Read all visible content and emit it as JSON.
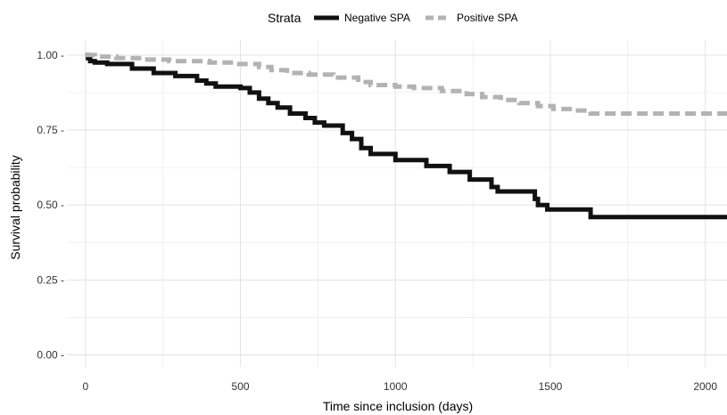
{
  "chart_data": {
    "type": "line",
    "step": true,
    "xlabel": "Time since inclusion (days)",
    "ylabel": "Survival probability",
    "xlim": [
      -60,
      2070
    ],
    "ylim": [
      -0.04,
      1.05
    ],
    "x_ticks": [
      0,
      500,
      1000,
      1500,
      2000
    ],
    "x_tick_labels": [
      "0",
      "500",
      "1000",
      "1500",
      "2000"
    ],
    "y_ticks": [
      0.0,
      0.25,
      0.5,
      0.75,
      1.0
    ],
    "y_tick_labels": [
      "0.00 -",
      "0.25 -",
      "0.50 -",
      "0.75 -",
      "1.00 -"
    ],
    "grid": true,
    "legend": {
      "title": "Strata",
      "position": "top"
    },
    "series": [
      {
        "name": "Negative SPA",
        "color": "#111111",
        "style": "solid",
        "points": [
          [
            0,
            1.0
          ],
          [
            8,
            0.99
          ],
          [
            15,
            0.98
          ],
          [
            30,
            0.975
          ],
          [
            70,
            0.97
          ],
          [
            150,
            0.955
          ],
          [
            220,
            0.94
          ],
          [
            290,
            0.93
          ],
          [
            360,
            0.915
          ],
          [
            390,
            0.905
          ],
          [
            420,
            0.895
          ],
          [
            500,
            0.89
          ],
          [
            530,
            0.875
          ],
          [
            560,
            0.855
          ],
          [
            590,
            0.84
          ],
          [
            620,
            0.825
          ],
          [
            660,
            0.805
          ],
          [
            710,
            0.79
          ],
          [
            740,
            0.775
          ],
          [
            770,
            0.765
          ],
          [
            830,
            0.74
          ],
          [
            860,
            0.72
          ],
          [
            890,
            0.69
          ],
          [
            920,
            0.67
          ],
          [
            1000,
            0.65
          ],
          [
            1100,
            0.63
          ],
          [
            1175,
            0.61
          ],
          [
            1240,
            0.585
          ],
          [
            1310,
            0.56
          ],
          [
            1330,
            0.545
          ],
          [
            1450,
            0.52
          ],
          [
            1460,
            0.5
          ],
          [
            1490,
            0.485
          ],
          [
            1630,
            0.46
          ],
          [
            2070,
            0.46
          ]
        ]
      },
      {
        "name": "Positive SPA",
        "color": "#b3b3b3",
        "style": "dashed",
        "points": [
          [
            0,
            1.0
          ],
          [
            30,
            0.995
          ],
          [
            100,
            0.99
          ],
          [
            180,
            0.985
          ],
          [
            270,
            0.98
          ],
          [
            400,
            0.975
          ],
          [
            480,
            0.97
          ],
          [
            560,
            0.96
          ],
          [
            600,
            0.95
          ],
          [
            650,
            0.94
          ],
          [
            720,
            0.935
          ],
          [
            800,
            0.925
          ],
          [
            880,
            0.91
          ],
          [
            920,
            0.9
          ],
          [
            1000,
            0.895
          ],
          [
            1060,
            0.89
          ],
          [
            1150,
            0.88
          ],
          [
            1230,
            0.87
          ],
          [
            1280,
            0.86
          ],
          [
            1340,
            0.85
          ],
          [
            1400,
            0.84
          ],
          [
            1460,
            0.83
          ],
          [
            1510,
            0.82
          ],
          [
            1570,
            0.815
          ],
          [
            1630,
            0.805
          ],
          [
            2070,
            0.805
          ]
        ]
      }
    ]
  }
}
